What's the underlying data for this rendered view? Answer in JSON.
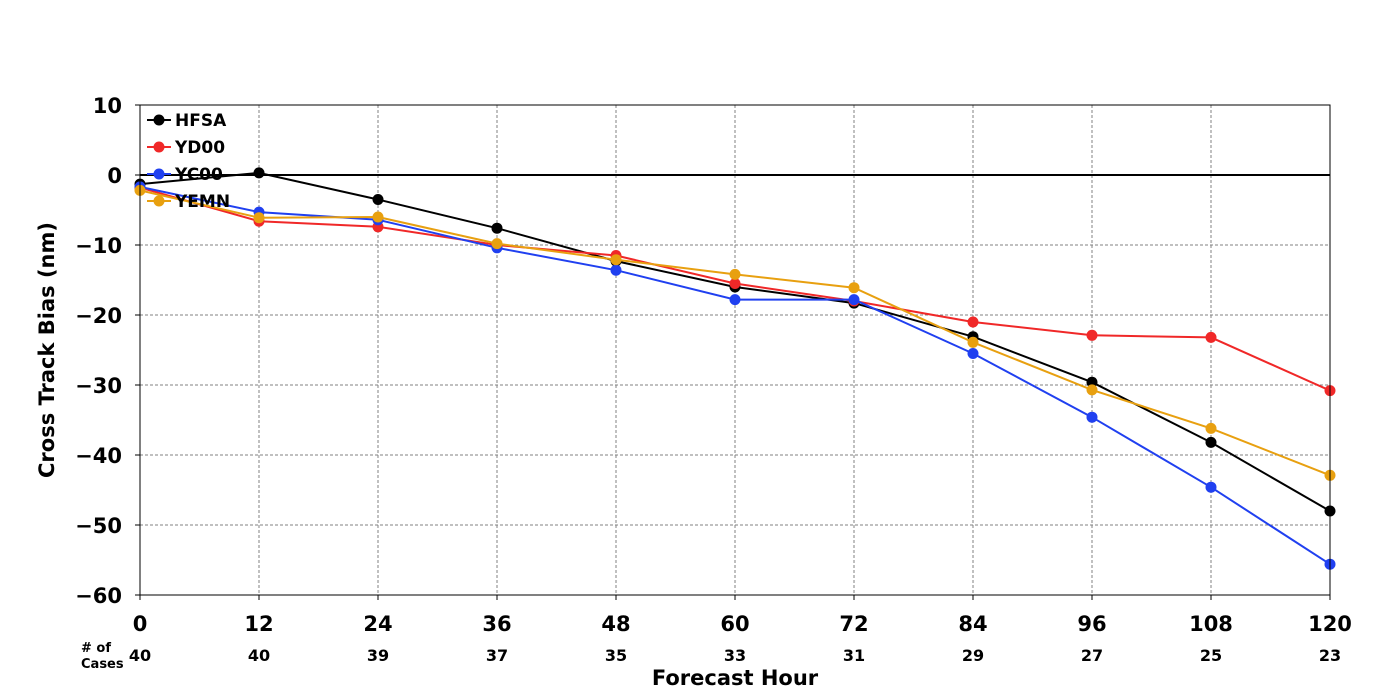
{
  "chart_data": {
    "type": "line",
    "title": "",
    "xlabel": "Forecast Hour",
    "ylabel": "Cross Track Bias (nm)",
    "x": [
      0,
      12,
      24,
      36,
      48,
      60,
      72,
      84,
      96,
      108,
      120
    ],
    "xlim": [
      0,
      120
    ],
    "ylim": [
      -60,
      10
    ],
    "x_ticks": [
      0,
      12,
      24,
      36,
      48,
      60,
      72,
      84,
      96,
      108,
      120
    ],
    "y_ticks": [
      10,
      0,
      -10,
      -20,
      -30,
      -40,
      -50,
      -60
    ],
    "grid": true,
    "legend_position": "top-left",
    "cases_title_line1": "# of",
    "cases_title_line2": "Cases",
    "cases": [
      40,
      40,
      39,
      37,
      35,
      33,
      31,
      29,
      27,
      25,
      23
    ],
    "series": [
      {
        "name": "HFSA",
        "color": "#000000",
        "values": [
          -1.3,
          0.3,
          -3.5,
          -7.6,
          -12.3,
          -16.0,
          -18.3,
          -23.1,
          -29.6,
          -38.2,
          -48.0
        ]
      },
      {
        "name": "YD00",
        "color": "#f02828",
        "values": [
          -1.8,
          -6.6,
          -7.4,
          -10.0,
          -11.5,
          -15.5,
          -18.0,
          -21.0,
          -22.9,
          -23.2,
          -30.8
        ]
      },
      {
        "name": "YC00",
        "color": "#2040f0",
        "values": [
          -1.7,
          -5.3,
          -6.4,
          -10.4,
          -13.6,
          -17.8,
          -17.8,
          -25.5,
          -34.6,
          -44.6,
          -55.6
        ]
      },
      {
        "name": "YEMN",
        "color": "#e8a010",
        "values": [
          -2.2,
          -6.1,
          -6.0,
          -9.8,
          -12.1,
          -14.2,
          -16.1,
          -23.9,
          -30.7,
          -36.2,
          -42.9
        ]
      }
    ]
  }
}
